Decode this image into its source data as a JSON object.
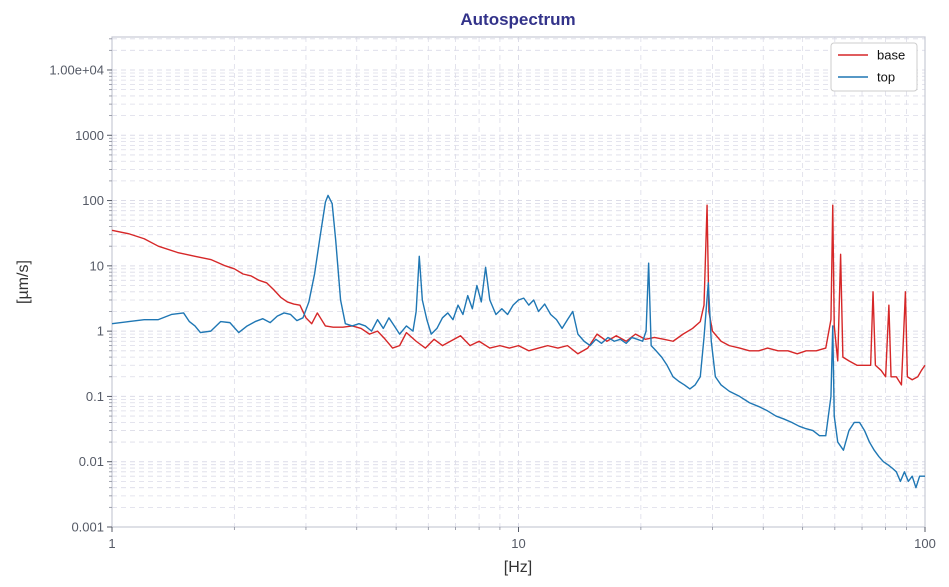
{
  "chart_data": {
    "type": "line",
    "title": "Autospectrum",
    "xlabel": "[Hz]",
    "ylabel": "[µm/s]",
    "x_scale": "log",
    "y_scale": "log",
    "xlim": [
      1,
      100
    ],
    "ylim": [
      0.001,
      32000
    ],
    "x_ticks": [
      1,
      10,
      100
    ],
    "x_tick_labels": [
      "1",
      "10",
      "100"
    ],
    "y_ticks": [
      0.001,
      0.01,
      0.1,
      1,
      10,
      100,
      1000,
      10000
    ],
    "y_tick_labels": [
      "0.001",
      "0.01",
      "0.1",
      "1",
      "10",
      "100",
      "1000",
      "1.00e+04"
    ],
    "grid": true,
    "legend_position": "top-right",
    "series": [
      {
        "name": "base",
        "color": "#d62728",
        "points": [
          [
            1.0,
            35
          ],
          [
            1.1,
            31
          ],
          [
            1.2,
            26
          ],
          [
            1.3,
            20
          ],
          [
            1.45,
            16
          ],
          [
            1.6,
            14
          ],
          [
            1.75,
            12.5
          ],
          [
            1.9,
            10
          ],
          [
            2.0,
            9
          ],
          [
            2.1,
            7.5
          ],
          [
            2.2,
            7
          ],
          [
            2.3,
            6
          ],
          [
            2.4,
            5.5
          ],
          [
            2.5,
            4.3
          ],
          [
            2.6,
            3.3
          ],
          [
            2.7,
            2.8
          ],
          [
            2.8,
            2.6
          ],
          [
            2.9,
            2.5
          ],
          [
            3.0,
            1.6
          ],
          [
            3.1,
            1.3
          ],
          [
            3.2,
            1.9
          ],
          [
            3.35,
            1.2
          ],
          [
            3.5,
            1.15
          ],
          [
            3.7,
            1.15
          ],
          [
            3.9,
            1.2
          ],
          [
            4.1,
            1.1
          ],
          [
            4.3,
            0.9
          ],
          [
            4.5,
            1.0
          ],
          [
            4.7,
            0.75
          ],
          [
            4.9,
            0.55
          ],
          [
            5.1,
            0.6
          ],
          [
            5.3,
            0.95
          ],
          [
            5.6,
            0.7
          ],
          [
            5.9,
            0.55
          ],
          [
            6.2,
            0.75
          ],
          [
            6.5,
            0.6
          ],
          [
            6.8,
            0.7
          ],
          [
            7.2,
            0.85
          ],
          [
            7.6,
            0.6
          ],
          [
            8.0,
            0.7
          ],
          [
            8.5,
            0.55
          ],
          [
            9.0,
            0.6
          ],
          [
            9.5,
            0.55
          ],
          [
            10.0,
            0.6
          ],
          [
            10.6,
            0.5
          ],
          [
            11.2,
            0.55
          ],
          [
            11.8,
            0.6
          ],
          [
            12.5,
            0.55
          ],
          [
            13.2,
            0.6
          ],
          [
            14.0,
            0.45
          ],
          [
            14.8,
            0.55
          ],
          [
            15.6,
            0.9
          ],
          [
            16.5,
            0.7
          ],
          [
            17.4,
            0.85
          ],
          [
            18.4,
            0.7
          ],
          [
            19.4,
            0.9
          ],
          [
            20.5,
            0.75
          ],
          [
            21.6,
            0.8
          ],
          [
            22.8,
            0.75
          ],
          [
            24.0,
            0.7
          ],
          [
            25.4,
            0.9
          ],
          [
            26.8,
            1.1
          ],
          [
            28.0,
            1.4
          ],
          [
            28.6,
            2.5
          ],
          [
            29.1,
            85
          ],
          [
            29.4,
            2.0
          ],
          [
            30.0,
            1.0
          ],
          [
            31.5,
            0.7
          ],
          [
            33.0,
            0.6
          ],
          [
            35.0,
            0.55
          ],
          [
            37.0,
            0.5
          ],
          [
            39.0,
            0.5
          ],
          [
            41.0,
            0.55
          ],
          [
            43.5,
            0.5
          ],
          [
            46.0,
            0.5
          ],
          [
            48.5,
            0.45
          ],
          [
            51.0,
            0.5
          ],
          [
            54.0,
            0.5
          ],
          [
            57.0,
            0.55
          ],
          [
            58.7,
            1.5
          ],
          [
            59.3,
            85
          ],
          [
            59.8,
            1.2
          ],
          [
            61.0,
            0.35
          ],
          [
            62.0,
            15
          ],
          [
            62.8,
            0.4
          ],
          [
            65.0,
            0.35
          ],
          [
            68.0,
            0.3
          ],
          [
            71.0,
            0.3
          ],
          [
            73.5,
            0.3
          ],
          [
            74.5,
            4
          ],
          [
            75.5,
            0.3
          ],
          [
            78.0,
            0.25
          ],
          [
            80.0,
            0.2
          ],
          [
            81.5,
            2.5
          ],
          [
            82.5,
            0.2
          ],
          [
            85.0,
            0.2
          ],
          [
            87.5,
            0.15
          ],
          [
            89.5,
            4
          ],
          [
            90.5,
            0.2
          ],
          [
            93.0,
            0.18
          ],
          [
            96.0,
            0.2
          ],
          [
            98.0,
            0.25
          ],
          [
            100.0,
            0.3
          ]
        ]
      },
      {
        "name": "top",
        "color": "#1f77b4",
        "points": [
          [
            1.0,
            1.3
          ],
          [
            1.1,
            1.4
          ],
          [
            1.2,
            1.5
          ],
          [
            1.3,
            1.5
          ],
          [
            1.4,
            1.8
          ],
          [
            1.5,
            1.9
          ],
          [
            1.55,
            1.4
          ],
          [
            1.6,
            1.2
          ],
          [
            1.65,
            0.95
          ],
          [
            1.75,
            1.0
          ],
          [
            1.85,
            1.4
          ],
          [
            1.95,
            1.35
          ],
          [
            2.05,
            0.95
          ],
          [
            2.15,
            1.2
          ],
          [
            2.25,
            1.4
          ],
          [
            2.35,
            1.55
          ],
          [
            2.45,
            1.35
          ],
          [
            2.55,
            1.7
          ],
          [
            2.65,
            1.9
          ],
          [
            2.75,
            1.8
          ],
          [
            2.85,
            1.45
          ],
          [
            2.95,
            1.6
          ],
          [
            3.05,
            2.8
          ],
          [
            3.15,
            7.5
          ],
          [
            3.25,
            28
          ],
          [
            3.35,
            95
          ],
          [
            3.4,
            120
          ],
          [
            3.48,
            90
          ],
          [
            3.55,
            25
          ],
          [
            3.65,
            3
          ],
          [
            3.75,
            1.3
          ],
          [
            3.9,
            1.2
          ],
          [
            4.05,
            1.3
          ],
          [
            4.2,
            1.2
          ],
          [
            4.35,
            1.0
          ],
          [
            4.5,
            1.5
          ],
          [
            4.65,
            1.1
          ],
          [
            4.8,
            1.6
          ],
          [
            4.95,
            1.2
          ],
          [
            5.1,
            0.9
          ],
          [
            5.3,
            1.2
          ],
          [
            5.5,
            1.0
          ],
          [
            5.6,
            2.0
          ],
          [
            5.7,
            14
          ],
          [
            5.8,
            3.0
          ],
          [
            5.95,
            1.5
          ],
          [
            6.1,
            0.9
          ],
          [
            6.3,
            1.1
          ],
          [
            6.5,
            1.6
          ],
          [
            6.7,
            1.9
          ],
          [
            6.9,
            1.5
          ],
          [
            7.1,
            2.5
          ],
          [
            7.3,
            1.8
          ],
          [
            7.5,
            3.5
          ],
          [
            7.7,
            2.2
          ],
          [
            7.9,
            5.0
          ],
          [
            8.1,
            2.8
          ],
          [
            8.3,
            9.5
          ],
          [
            8.5,
            3.0
          ],
          [
            8.8,
            1.8
          ],
          [
            9.1,
            2.2
          ],
          [
            9.4,
            1.8
          ],
          [
            9.7,
            2.5
          ],
          [
            10.0,
            3.0
          ],
          [
            10.3,
            3.2
          ],
          [
            10.6,
            2.5
          ],
          [
            10.9,
            3.0
          ],
          [
            11.2,
            2.0
          ],
          [
            11.6,
            2.6
          ],
          [
            12.0,
            1.8
          ],
          [
            12.4,
            1.5
          ],
          [
            12.8,
            1.1
          ],
          [
            13.2,
            1.5
          ],
          [
            13.6,
            2.0
          ],
          [
            14.0,
            0.9
          ],
          [
            14.5,
            0.7
          ],
          [
            15.0,
            0.6
          ],
          [
            15.5,
            0.75
          ],
          [
            16.0,
            0.65
          ],
          [
            16.6,
            0.8
          ],
          [
            17.2,
            0.7
          ],
          [
            17.8,
            0.75
          ],
          [
            18.4,
            0.65
          ],
          [
            19.0,
            0.8
          ],
          [
            19.6,
            0.75
          ],
          [
            20.2,
            0.7
          ],
          [
            20.6,
            1.0
          ],
          [
            20.9,
            11
          ],
          [
            21.2,
            0.6
          ],
          [
            21.8,
            0.5
          ],
          [
            22.5,
            0.4
          ],
          [
            23.2,
            0.3
          ],
          [
            24.0,
            0.2
          ],
          [
            24.8,
            0.17
          ],
          [
            25.6,
            0.15
          ],
          [
            26.4,
            0.13
          ],
          [
            27.2,
            0.15
          ],
          [
            28.0,
            0.2
          ],
          [
            28.6,
            0.8
          ],
          [
            29.3,
            5.5
          ],
          [
            29.8,
            0.7
          ],
          [
            30.5,
            0.2
          ],
          [
            31.5,
            0.15
          ],
          [
            33.0,
            0.12
          ],
          [
            35.0,
            0.1
          ],
          [
            37.0,
            0.08
          ],
          [
            39.0,
            0.07
          ],
          [
            41.0,
            0.06
          ],
          [
            43.0,
            0.05
          ],
          [
            45.0,
            0.045
          ],
          [
            47.0,
            0.04
          ],
          [
            49.0,
            0.035
          ],
          [
            51.0,
            0.032
          ],
          [
            53.0,
            0.03
          ],
          [
            55.0,
            0.025
          ],
          [
            57.0,
            0.025
          ],
          [
            58.7,
            0.1
          ],
          [
            59.3,
            1.2
          ],
          [
            59.8,
            0.05
          ],
          [
            61.0,
            0.02
          ],
          [
            63.0,
            0.015
          ],
          [
            65.0,
            0.03
          ],
          [
            67.0,
            0.04
          ],
          [
            69.0,
            0.04
          ],
          [
            71.0,
            0.03
          ],
          [
            73.0,
            0.02
          ],
          [
            75.0,
            0.015
          ],
          [
            77.0,
            0.012
          ],
          [
            79.0,
            0.01
          ],
          [
            81.0,
            0.009
          ],
          [
            83.0,
            0.008
          ],
          [
            85.0,
            0.007
          ],
          [
            87.0,
            0.005
          ],
          [
            89.0,
            0.007
          ],
          [
            91.0,
            0.005
          ],
          [
            93.0,
            0.006
          ],
          [
            95.0,
            0.004
          ],
          [
            97.0,
            0.006
          ],
          [
            100.0,
            0.006
          ]
        ]
      }
    ]
  },
  "colors": {
    "title": "#33338a",
    "grid": "#dcdce8",
    "frame": "#c8cad6"
  }
}
